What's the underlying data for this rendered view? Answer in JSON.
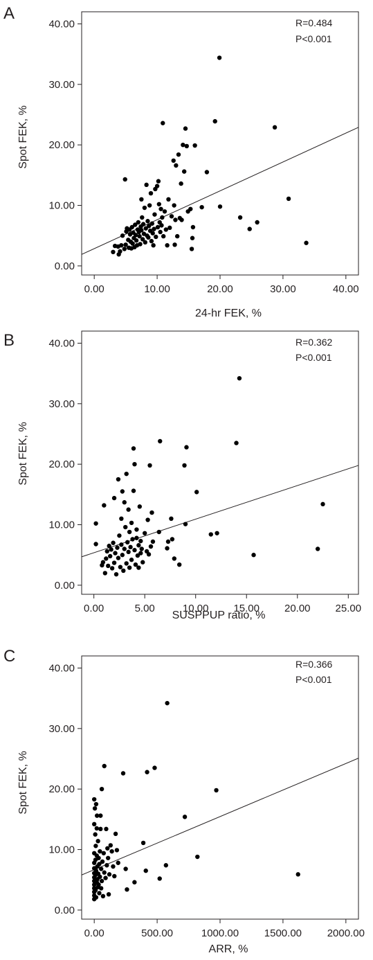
{
  "chart_data": [
    {
      "type": "scatter",
      "panel": "A",
      "xlabel": "24-hr FEK, %",
      "ylabel": "Spot FEK, %",
      "stats": [
        "R=0.484",
        "P<0.001"
      ],
      "xlim": [
        -2,
        42
      ],
      "ylim": [
        -1.5,
        42
      ],
      "xticks": [
        0,
        10,
        20,
        30,
        40
      ],
      "xtick_labels": [
        "0.00",
        "10.00",
        "20.00",
        "30.00",
        "40.00"
      ],
      "yticks": [
        0,
        10,
        20,
        30,
        40
      ],
      "ytick_labels": [
        "0.00",
        "10.00",
        "20.00",
        "30.00",
        "40.00"
      ],
      "fit_line": {
        "x": [
          -2,
          42
        ],
        "y": [
          1.9,
          22.9
        ]
      },
      "points": [
        [
          3.0,
          2.3
        ],
        [
          3.3,
          3.3
        ],
        [
          3.8,
          3.2
        ],
        [
          3.9,
          1.9
        ],
        [
          4.1,
          2.4
        ],
        [
          4.3,
          3.4
        ],
        [
          4.5,
          5.0
        ],
        [
          4.8,
          2.8
        ],
        [
          4.9,
          14.3
        ],
        [
          5.0,
          3.5
        ],
        [
          5.1,
          5.7
        ],
        [
          5.2,
          6.2
        ],
        [
          5.4,
          4.3
        ],
        [
          5.5,
          3.0
        ],
        [
          5.6,
          6.0
        ],
        [
          5.7,
          5.2
        ],
        [
          5.8,
          4.0
        ],
        [
          5.9,
          2.9
        ],
        [
          6.0,
          6.4
        ],
        [
          6.1,
          3.7
        ],
        [
          6.2,
          5.5
        ],
        [
          6.3,
          4.6
        ],
        [
          6.4,
          3.1
        ],
        [
          6.5,
          6.8
        ],
        [
          6.6,
          5.1
        ],
        [
          6.7,
          4.2
        ],
        [
          6.8,
          3.4
        ],
        [
          6.9,
          6.0
        ],
        [
          7.0,
          7.2
        ],
        [
          7.1,
          5.6
        ],
        [
          7.2,
          4.9
        ],
        [
          7.3,
          3.6
        ],
        [
          7.4,
          6.5
        ],
        [
          7.5,
          11.0
        ],
        [
          7.5,
          5.9
        ],
        [
          7.6,
          8.0
        ],
        [
          7.7,
          4.4
        ],
        [
          7.8,
          6.9
        ],
        [
          7.9,
          5.3
        ],
        [
          8.0,
          9.6
        ],
        [
          8.1,
          3.9
        ],
        [
          8.2,
          6.2
        ],
        [
          8.3,
          13.4
        ],
        [
          8.4,
          5.0
        ],
        [
          8.5,
          7.4
        ],
        [
          8.6,
          4.7
        ],
        [
          8.7,
          6.6
        ],
        [
          8.8,
          10.0
        ],
        [
          8.9,
          5.8
        ],
        [
          9.0,
          12.0
        ],
        [
          9.1,
          4.1
        ],
        [
          9.2,
          7.0
        ],
        [
          9.3,
          5.4
        ],
        [
          9.4,
          3.4
        ],
        [
          9.5,
          6.1
        ],
        [
          9.6,
          8.5
        ],
        [
          9.7,
          12.7
        ],
        [
          9.8,
          4.8
        ],
        [
          10.0,
          13.2
        ],
        [
          10.1,
          6.4
        ],
        [
          10.2,
          14.0
        ],
        [
          10.3,
          10.2
        ],
        [
          10.4,
          7.2
        ],
        [
          10.5,
          5.6
        ],
        [
          10.6,
          9.4
        ],
        [
          10.7,
          6.7
        ],
        [
          10.8,
          8.0
        ],
        [
          10.9,
          23.6
        ],
        [
          11.0,
          4.9
        ],
        [
          11.2,
          9.0
        ],
        [
          11.4,
          6.0
        ],
        [
          11.6,
          3.4
        ],
        [
          11.8,
          11.0
        ],
        [
          12.0,
          6.3
        ],
        [
          12.3,
          8.2
        ],
        [
          12.6,
          17.4
        ],
        [
          12.7,
          10.0
        ],
        [
          12.8,
          3.5
        ],
        [
          12.9,
          7.6
        ],
        [
          13.0,
          16.6
        ],
        [
          13.2,
          4.9
        ],
        [
          13.4,
          18.4
        ],
        [
          13.6,
          7.9
        ],
        [
          13.8,
          13.6
        ],
        [
          13.9,
          7.6
        ],
        [
          14.1,
          20.0
        ],
        [
          14.3,
          15.6
        ],
        [
          14.5,
          22.7
        ],
        [
          14.7,
          19.8
        ],
        [
          14.9,
          9.0
        ],
        [
          15.3,
          9.4
        ],
        [
          15.5,
          2.8
        ],
        [
          15.6,
          4.6
        ],
        [
          15.7,
          6.4
        ],
        [
          16.0,
          19.9
        ],
        [
          17.1,
          9.7
        ],
        [
          17.9,
          15.5
        ],
        [
          19.2,
          23.9
        ],
        [
          19.9,
          34.4
        ],
        [
          20.0,
          9.8
        ],
        [
          23.2,
          8.0
        ],
        [
          24.7,
          6.1
        ],
        [
          25.9,
          7.2
        ],
        [
          28.7,
          22.9
        ],
        [
          30.9,
          11.1
        ],
        [
          33.7,
          3.8
        ]
      ]
    },
    {
      "type": "scatter",
      "panel": "B",
      "xlabel": "SUSPPUP ratio, %",
      "ylabel": "Spot FEK, %",
      "stats": [
        "R=0.362",
        "P<0.001"
      ],
      "xlim": [
        -1.2,
        26
      ],
      "ylim": [
        -1.5,
        42
      ],
      "xticks": [
        0,
        5,
        10,
        15,
        20,
        25
      ],
      "xtick_labels": [
        "0.00",
        "5.00",
        "10.00",
        "15.00",
        "20.00",
        "25.00"
      ],
      "yticks": [
        0,
        10,
        20,
        30,
        40
      ],
      "ytick_labels": [
        "0.00",
        "10.00",
        "20.00",
        "30.00",
        "40.00"
      ],
      "fit_line": {
        "x": [
          -1.2,
          26
        ],
        "y": [
          4.7,
          19.8
        ]
      },
      "points": [
        [
          0.2,
          10.2
        ],
        [
          0.2,
          6.8
        ],
        [
          0.8,
          3.3
        ],
        [
          0.9,
          3.8
        ],
        [
          1.0,
          13.2
        ],
        [
          1.1,
          2.0
        ],
        [
          1.2,
          4.4
        ],
        [
          1.3,
          5.6
        ],
        [
          1.4,
          3.2
        ],
        [
          1.5,
          6.5
        ],
        [
          1.6,
          4.8
        ],
        [
          1.7,
          5.9
        ],
        [
          1.8,
          2.8
        ],
        [
          1.9,
          7.0
        ],
        [
          2.0,
          14.4
        ],
        [
          2.0,
          3.7
        ],
        [
          2.1,
          5.3
        ],
        [
          2.2,
          1.8
        ],
        [
          2.3,
          6.2
        ],
        [
          2.4,
          17.5
        ],
        [
          2.4,
          4.5
        ],
        [
          2.5,
          8.2
        ],
        [
          2.6,
          3.0
        ],
        [
          2.7,
          11.0
        ],
        [
          2.7,
          6.7
        ],
        [
          2.8,
          15.5
        ],
        [
          2.8,
          5.0
        ],
        [
          2.9,
          2.4
        ],
        [
          3.0,
          13.7
        ],
        [
          3.0,
          6.0
        ],
        [
          3.1,
          9.6
        ],
        [
          3.2,
          3.6
        ],
        [
          3.2,
          18.4
        ],
        [
          3.3,
          7.1
        ],
        [
          3.4,
          5.5
        ],
        [
          3.4,
          12.5
        ],
        [
          3.5,
          2.9
        ],
        [
          3.5,
          8.8
        ],
        [
          3.6,
          6.3
        ],
        [
          3.7,
          10.3
        ],
        [
          3.7,
          4.2
        ],
        [
          3.8,
          7.6
        ],
        [
          3.9,
          15.6
        ],
        [
          3.9,
          22.6
        ],
        [
          4.0,
          5.8
        ],
        [
          4.0,
          20.0
        ],
        [
          4.1,
          3.4
        ],
        [
          4.2,
          7.8
        ],
        [
          4.2,
          9.2
        ],
        [
          4.3,
          4.9
        ],
        [
          4.4,
          6.6
        ],
        [
          4.4,
          2.9
        ],
        [
          4.5,
          13.0
        ],
        [
          4.6,
          5.3
        ],
        [
          4.6,
          7.3
        ],
        [
          4.7,
          6.0
        ],
        [
          4.8,
          3.8
        ],
        [
          5.0,
          8.6
        ],
        [
          5.2,
          5.6
        ],
        [
          5.3,
          10.8
        ],
        [
          5.5,
          19.8
        ],
        [
          5.6,
          6.4
        ],
        [
          5.7,
          12.0
        ],
        [
          5.8,
          7.2
        ],
        [
          5.4,
          5.1
        ],
        [
          6.5,
          23.8
        ],
        [
          6.4,
          8.8
        ],
        [
          7.2,
          6.1
        ],
        [
          7.3,
          7.2
        ],
        [
          7.6,
          11.0
        ],
        [
          7.7,
          7.6
        ],
        [
          7.9,
          4.4
        ],
        [
          8.4,
          3.4
        ],
        [
          8.9,
          19.8
        ],
        [
          9.1,
          22.8
        ],
        [
          9.0,
          10.1
        ],
        [
          10.1,
          15.4
        ],
        [
          11.5,
          8.4
        ],
        [
          12.1,
          8.6
        ],
        [
          14.0,
          23.5
        ],
        [
          14.3,
          34.2
        ],
        [
          15.7,
          5.0
        ],
        [
          22.0,
          6.0
        ],
        [
          22.5,
          13.4
        ]
      ]
    },
    {
      "type": "scatter",
      "panel": "C",
      "xlabel": "ARR, %",
      "ylabel": "Spot FEK, %",
      "stats": [
        "R=0.366",
        "P<0.001"
      ],
      "xlim": [
        -100,
        2100
      ],
      "ylim": [
        -1.5,
        42
      ],
      "xticks": [
        0,
        500,
        1000,
        1500,
        2000
      ],
      "xtick_labels": [
        "0.00",
        "500.00",
        "1000.00",
        "1500.00",
        "2000.00"
      ],
      "yticks": [
        0,
        10,
        20,
        30,
        40
      ],
      "ytick_labels": [
        "0.00",
        "10.00",
        "20.00",
        "30.00",
        "40.00"
      ],
      "fit_line": {
        "x": [
          -100,
          2100
        ],
        "y": [
          5.8,
          25.1
        ]
      },
      "points": [
        [
          0,
          18.3
        ],
        [
          0,
          14.2
        ],
        [
          0,
          9.4
        ],
        [
          0,
          7.8
        ],
        [
          0,
          6.9
        ],
        [
          0,
          6.1
        ],
        [
          0,
          5.4
        ],
        [
          0,
          4.8
        ],
        [
          0,
          4.2
        ],
        [
          0,
          3.6
        ],
        [
          0,
          3.0
        ],
        [
          0,
          2.4
        ],
        [
          0,
          1.8
        ],
        [
          5,
          16.8
        ],
        [
          8,
          12.5
        ],
        [
          10,
          8.3
        ],
        [
          10,
          5.8
        ],
        [
          10,
          3.3
        ],
        [
          12,
          10.6
        ],
        [
          15,
          17.5
        ],
        [
          15,
          6.5
        ],
        [
          15,
          2.1
        ],
        [
          20,
          13.5
        ],
        [
          20,
          9.0
        ],
        [
          20,
          4.6
        ],
        [
          22,
          15.6
        ],
        [
          25,
          7.2
        ],
        [
          25,
          5.1
        ],
        [
          30,
          11.4
        ],
        [
          30,
          3.8
        ],
        [
          32,
          6.0
        ],
        [
          35,
          8.6
        ],
        [
          35,
          4.2
        ],
        [
          40,
          7.6
        ],
        [
          40,
          2.8
        ],
        [
          45,
          9.7
        ],
        [
          45,
          5.5
        ],
        [
          50,
          15.6
        ],
        [
          50,
          13.4
        ],
        [
          55,
          6.8
        ],
        [
          55,
          3.6
        ],
        [
          60,
          20.0
        ],
        [
          60,
          4.8
        ],
        [
          65,
          8.0
        ],
        [
          70,
          2.3
        ],
        [
          75,
          9.4
        ],
        [
          80,
          23.8
        ],
        [
          80,
          6.2
        ],
        [
          90,
          5.3
        ],
        [
          95,
          13.4
        ],
        [
          100,
          7.4
        ],
        [
          105,
          10.2
        ],
        [
          110,
          8.6
        ],
        [
          115,
          2.6
        ],
        [
          120,
          5.9
        ],
        [
          130,
          10.7
        ],
        [
          140,
          9.7
        ],
        [
          150,
          7.2
        ],
        [
          160,
          5.6
        ],
        [
          170,
          12.6
        ],
        [
          180,
          9.9
        ],
        [
          190,
          7.8
        ],
        [
          230,
          22.6
        ],
        [
          250,
          6.8
        ],
        [
          260,
          3.4
        ],
        [
          320,
          4.6
        ],
        [
          390,
          11.1
        ],
        [
          410,
          6.5
        ],
        [
          420,
          22.8
        ],
        [
          480,
          23.5
        ],
        [
          520,
          5.2
        ],
        [
          570,
          7.4
        ],
        [
          580,
          34.2
        ],
        [
          720,
          15.4
        ],
        [
          820,
          8.8
        ],
        [
          970,
          19.8
        ],
        [
          1620,
          5.9
        ]
      ]
    }
  ]
}
